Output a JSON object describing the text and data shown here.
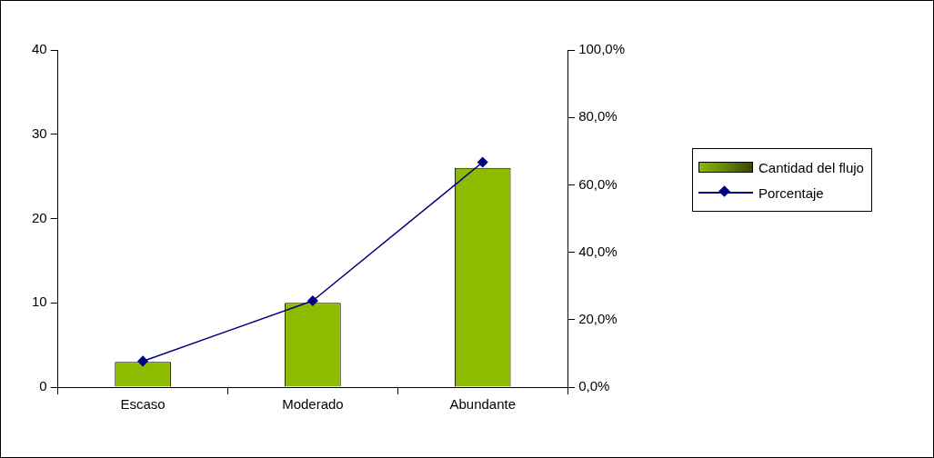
{
  "chart_data": {
    "type": "bar",
    "categories": [
      "Escaso",
      "Moderado",
      "Abundante"
    ],
    "series": [
      {
        "name": "Cantidad del flujo",
        "color": "#8dbb00",
        "values": [
          3,
          10,
          26
        ]
      },
      {
        "name": "Porcentaje",
        "type": "line",
        "axis": "y2",
        "color": "#000080",
        "values": [
          7.7,
          25.6,
          66.7
        ],
        "marker": "diamond"
      }
    ],
    "ylim": [
      0,
      40
    ],
    "yticks": [
      0,
      10,
      20,
      30,
      40
    ],
    "y2lim": [
      0,
      100
    ],
    "y2ticks": [
      {
        "value": 0,
        "label": "0,0%"
      },
      {
        "value": 20,
        "label": "20,0%"
      },
      {
        "value": 40,
        "label": "40,0%"
      },
      {
        "value": 60,
        "label": "60,0%"
      },
      {
        "value": 80,
        "label": "80,0%"
      },
      {
        "value": 100,
        "label": "100,0%"
      }
    ],
    "grid": false,
    "legend": "right"
  }
}
